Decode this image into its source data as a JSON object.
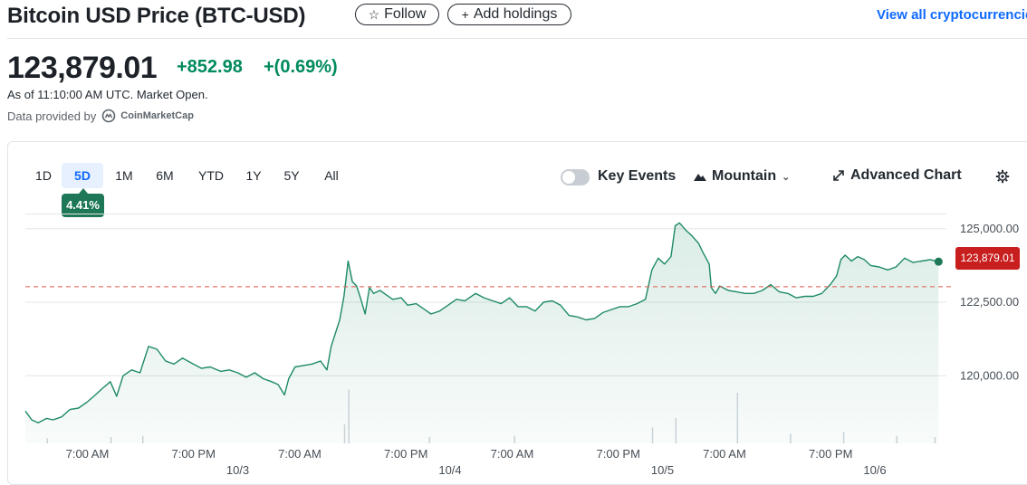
{
  "header": {
    "title": "Bitcoin USD Price (BTC-USD)",
    "follow_label": "Follow",
    "follow_icon": "star-outline-icon",
    "add_holdings_label": "Add holdings",
    "add_holdings_icon": "plus-icon",
    "view_all_label": "View all cryptocurrencies"
  },
  "quote": {
    "price": "123,879.01",
    "change": "+852.98",
    "change_percent": "+(0.69%)",
    "as_of": "As of 11:10:00 AM UTC. Market Open.",
    "provider_prefix": "Data provided by",
    "provider_name": "CoinMarketCap",
    "change_color": "#008a5e"
  },
  "chart_controls": {
    "ranges": [
      "1D",
      "5D",
      "1M",
      "6M",
      "YTD",
      "1Y",
      "5Y",
      "All"
    ],
    "active_range": "5D",
    "range_change": "4.41%",
    "key_events_label": "Key Events",
    "key_events_on": false,
    "chart_type_label": "Mountain",
    "advanced_chart_label": "Advanced Chart",
    "settings_icon": "gear-icon"
  },
  "chart_data": {
    "type": "area",
    "y_ticks": [
      {
        "value": 125000,
        "label": "125,000.00"
      },
      {
        "value": 122500,
        "label": "122,500.00"
      },
      {
        "value": 120000,
        "label": "120,000.00"
      }
    ],
    "ylim": [
      117700,
      125700
    ],
    "x_ticks": [
      {
        "day": 0.292,
        "label": "7:00 AM"
      },
      {
        "day": 0.792,
        "label": "7:00 PM"
      },
      {
        "day": 1.292,
        "label": "7:00 AM"
      },
      {
        "day": 1.792,
        "label": "7:00 PM"
      },
      {
        "day": 2.292,
        "label": "7:00 AM"
      },
      {
        "day": 2.792,
        "label": "7:00 PM"
      },
      {
        "day": 3.292,
        "label": "7:00 AM"
      },
      {
        "day": 3.792,
        "label": "7:00 PM"
      }
    ],
    "date_labels": [
      {
        "day": 1.0,
        "label": "10/3"
      },
      {
        "day": 2.0,
        "label": "10/4"
      },
      {
        "day": 3.0,
        "label": "10/5"
      },
      {
        "day": 4.0,
        "label": "10/6"
      }
    ],
    "previous_close": 123026,
    "current_price_label": "123,879.01",
    "series": [
      {
        "points": [
          [
            0.0,
            118800
          ],
          [
            0.03,
            118500
          ],
          [
            0.06,
            118400
          ],
          [
            0.1,
            118550
          ],
          [
            0.13,
            118500
          ],
          [
            0.17,
            118600
          ],
          [
            0.21,
            118850
          ],
          [
            0.25,
            118900
          ],
          [
            0.29,
            119100
          ],
          [
            0.33,
            119350
          ],
          [
            0.36,
            119550
          ],
          [
            0.4,
            119800
          ],
          [
            0.43,
            119300
          ],
          [
            0.46,
            120000
          ],
          [
            0.5,
            120200
          ],
          [
            0.54,
            120100
          ],
          [
            0.58,
            121000
          ],
          [
            0.62,
            120900
          ],
          [
            0.66,
            120500
          ],
          [
            0.7,
            120400
          ],
          [
            0.74,
            120600
          ],
          [
            0.79,
            120400
          ],
          [
            0.83,
            120250
          ],
          [
            0.87,
            120300
          ],
          [
            0.92,
            120150
          ],
          [
            0.96,
            120200
          ],
          [
            1.0,
            120100
          ],
          [
            1.04,
            119950
          ],
          [
            1.08,
            120100
          ],
          [
            1.12,
            119900
          ],
          [
            1.16,
            119800
          ],
          [
            1.19,
            119700
          ],
          [
            1.22,
            119350
          ],
          [
            1.24,
            119900
          ],
          [
            1.27,
            120300
          ],
          [
            1.31,
            120350
          ],
          [
            1.35,
            120400
          ],
          [
            1.39,
            120500
          ],
          [
            1.42,
            120200
          ],
          [
            1.44,
            121000
          ],
          [
            1.48,
            121900
          ],
          [
            1.5,
            122700
          ],
          [
            1.52,
            123900
          ],
          [
            1.54,
            123200
          ],
          [
            1.56,
            123050
          ],
          [
            1.58,
            122600
          ],
          [
            1.6,
            122100
          ],
          [
            1.62,
            123000
          ],
          [
            1.64,
            122800
          ],
          [
            1.67,
            122900
          ],
          [
            1.7,
            122750
          ],
          [
            1.73,
            122600
          ],
          [
            1.77,
            122650
          ],
          [
            1.8,
            122400
          ],
          [
            1.84,
            122450
          ],
          [
            1.88,
            122250
          ],
          [
            1.91,
            122100
          ],
          [
            1.95,
            122200
          ],
          [
            1.99,
            122400
          ],
          [
            2.03,
            122600
          ],
          [
            2.07,
            122550
          ],
          [
            2.12,
            122800
          ],
          [
            2.16,
            122650
          ],
          [
            2.2,
            122550
          ],
          [
            2.24,
            122450
          ],
          [
            2.28,
            122650
          ],
          [
            2.32,
            122350
          ],
          [
            2.36,
            122350
          ],
          [
            2.4,
            122200
          ],
          [
            2.44,
            122500
          ],
          [
            2.48,
            122550
          ],
          [
            2.52,
            122400
          ],
          [
            2.56,
            122050
          ],
          [
            2.6,
            122000
          ],
          [
            2.64,
            121900
          ],
          [
            2.68,
            121950
          ],
          [
            2.72,
            122150
          ],
          [
            2.76,
            122250
          ],
          [
            2.8,
            122350
          ],
          [
            2.84,
            122350
          ],
          [
            2.88,
            122450
          ],
          [
            2.92,
            122600
          ],
          [
            2.95,
            123600
          ],
          [
            2.98,
            124000
          ],
          [
            3.01,
            123800
          ],
          [
            3.04,
            124050
          ],
          [
            3.06,
            125100
          ],
          [
            3.08,
            125200
          ],
          [
            3.11,
            124950
          ],
          [
            3.14,
            124750
          ],
          [
            3.17,
            124500
          ],
          [
            3.19,
            124200
          ],
          [
            3.22,
            123800
          ],
          [
            3.23,
            123000
          ],
          [
            3.25,
            122800
          ],
          [
            3.27,
            123050
          ],
          [
            3.31,
            122900
          ],
          [
            3.35,
            122850
          ],
          [
            3.39,
            122800
          ],
          [
            3.43,
            122800
          ],
          [
            3.47,
            122900
          ],
          [
            3.51,
            123100
          ],
          [
            3.55,
            122850
          ],
          [
            3.59,
            122800
          ],
          [
            3.63,
            122650
          ],
          [
            3.67,
            122700
          ],
          [
            3.71,
            122700
          ],
          [
            3.75,
            122800
          ],
          [
            3.79,
            123100
          ],
          [
            3.82,
            123400
          ],
          [
            3.84,
            123950
          ],
          [
            3.86,
            124100
          ],
          [
            3.89,
            123900
          ],
          [
            3.92,
            124050
          ],
          [
            3.95,
            123950
          ],
          [
            3.98,
            123750
          ],
          [
            4.02,
            123700
          ],
          [
            4.06,
            123600
          ],
          [
            4.1,
            123700
          ],
          [
            4.14,
            124000
          ],
          [
            4.18,
            123850
          ],
          [
            4.22,
            123900
          ],
          [
            4.26,
            123950
          ],
          [
            4.3,
            123879
          ]
        ]
      }
    ],
    "volume": [
      {
        "day": 0.1,
        "v": 0.08
      },
      {
        "day": 0.4,
        "v": 0.1
      },
      {
        "day": 0.55,
        "v": 0.12
      },
      {
        "day": 1.52,
        "v": 0.85
      },
      {
        "day": 1.5,
        "v": 0.3
      },
      {
        "day": 1.9,
        "v": 0.1
      },
      {
        "day": 2.3,
        "v": 0.12
      },
      {
        "day": 2.95,
        "v": 0.25
      },
      {
        "day": 3.06,
        "v": 0.4
      },
      {
        "day": 3.35,
        "v": 0.8
      },
      {
        "day": 3.6,
        "v": 0.15
      },
      {
        "day": 3.85,
        "v": 0.18
      },
      {
        "day": 4.1,
        "v": 0.12
      },
      {
        "day": 4.28,
        "v": 0.1
      }
    ]
  }
}
